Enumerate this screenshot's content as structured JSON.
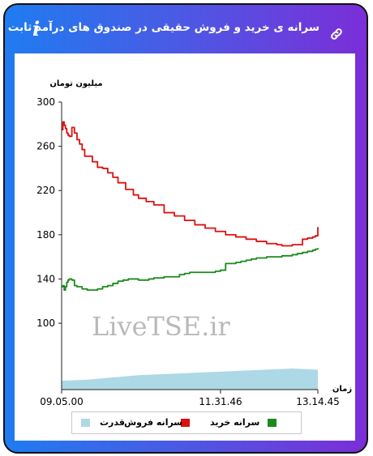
{
  "header": {
    "title": "سرانه ی خرید و فروش حقیقی در صندوق های درآمد ثابت",
    "info_icon": "info-icon",
    "link_icon": "link-icon"
  },
  "watermark": "LiveTSE.ir",
  "chart_data": {
    "type": "line",
    "ylabel": "میلیون تومان",
    "xlabel": "زمان",
    "ylim": [
      40,
      300
    ],
    "y_ticks": [
      100,
      140,
      180,
      220,
      260,
      300
    ],
    "y_tick_labels": [
      "100",
      "140",
      "180",
      "220",
      "260",
      "300"
    ],
    "x_tick_labels": [
      "09.05.00",
      "11.31.46",
      "13.14.45"
    ],
    "x_index_range": [
      0,
      100
    ],
    "x_tick_positions": [
      0,
      62,
      100
    ],
    "grid": false,
    "legend_position": "bottom",
    "series": [
      {
        "name": "سرانه فروش",
        "type": "line",
        "color": "#dd1111",
        "x": [
          0,
          0.5,
          1,
          1.5,
          2,
          2.5,
          3,
          4,
          5,
          6,
          7,
          8,
          9,
          10,
          12,
          14,
          16,
          18,
          20,
          22,
          25,
          28,
          30,
          33,
          36,
          40,
          44,
          48,
          52,
          56,
          60,
          64,
          68,
          72,
          76,
          80,
          84,
          86,
          88,
          90,
          92,
          94,
          96,
          98,
          99,
          100
        ],
        "values": [
          275,
          282,
          279,
          276,
          272,
          270,
          269,
          277,
          272,
          266,
          262,
          257,
          251,
          251,
          246,
          241,
          240,
          236,
          232,
          227,
          221,
          216,
          213,
          210,
          207,
          200,
          197,
          193,
          189,
          186,
          183,
          180,
          178,
          176,
          174,
          172,
          171,
          170,
          170,
          171,
          171,
          176,
          177,
          178,
          179,
          187
        ]
      },
      {
        "name": "سرانه خرید",
        "type": "line",
        "color": "#1b8a1b",
        "x": [
          0,
          0.5,
          1,
          1.5,
          2,
          2.5,
          3,
          4,
          5,
          6,
          8,
          10,
          12,
          14,
          16,
          18,
          20,
          22,
          24,
          26,
          28,
          30,
          32,
          34,
          36,
          38,
          40,
          42,
          44,
          46,
          48,
          50,
          52,
          54,
          56,
          58,
          60,
          62,
          64,
          66,
          68,
          70,
          72,
          74,
          76,
          78,
          80,
          82,
          84,
          86,
          88,
          90,
          92,
          94,
          96,
          98,
          99,
          100
        ],
        "values": [
          133,
          134,
          130,
          133,
          137,
          139,
          140,
          139,
          134,
          133,
          131,
          130,
          130,
          131,
          133,
          134,
          136,
          138,
          139,
          140,
          140,
          139,
          139,
          140,
          141,
          141,
          142,
          142,
          142,
          144,
          145,
          146,
          146,
          146,
          146,
          146,
          147,
          148,
          154,
          154,
          155,
          156,
          157,
          158,
          159,
          159,
          160,
          160,
          160,
          161,
          161,
          162,
          163,
          164,
          165,
          166,
          167,
          168
        ]
      },
      {
        "name": "قدرت",
        "type": "area",
        "color": "#add8e6",
        "x": [
          0,
          10,
          20,
          30,
          40,
          50,
          60,
          70,
          80,
          90,
          100
        ],
        "values": [
          48,
          49,
          51,
          53,
          54,
          55,
          56,
          57,
          58,
          59,
          58
        ]
      }
    ]
  },
  "legend": [
    {
      "label": "سرانه خرید",
      "color": "#1b8a1b"
    },
    {
      "label": "سرانه فروش",
      "color": "#dd1111"
    },
    {
      "label": "قدرت",
      "color": "#add8e6"
    }
  ]
}
